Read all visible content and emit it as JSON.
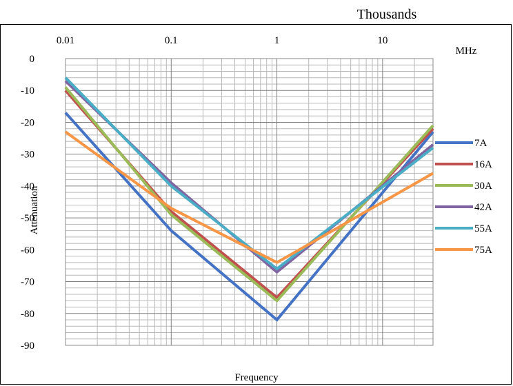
{
  "chart_data": {
    "type": "line",
    "x_scale": "log",
    "x_axis_position": "top",
    "x_units_label": "Thousands",
    "x_unit_suffix": "MHz",
    "xlabel": "Frequency",
    "ylabel": "Attenuation",
    "x": [
      0.01,
      0.1,
      1,
      30
    ],
    "xlim": [
      0.01,
      30
    ],
    "ylim": [
      -90,
      0
    ],
    "x_ticks": [
      {
        "value": 0.01,
        "label": "0.01"
      },
      {
        "value": 0.1,
        "label": "0.1"
      },
      {
        "value": 1,
        "label": "1"
      },
      {
        "value": 10,
        "label": "10"
      }
    ],
    "y_ticks": [
      0,
      -10,
      -20,
      -30,
      -40,
      -50,
      -60,
      -70,
      -80,
      -90
    ],
    "grid": true,
    "legend_position": "right",
    "series": [
      {
        "name": "7A",
        "color": "#4472C4",
        "values": [
          -17,
          -54,
          -82,
          -23
        ]
      },
      {
        "name": "16A",
        "color": "#C0504D",
        "values": [
          -10,
          -48,
          -75,
          -22
        ]
      },
      {
        "name": "30A",
        "color": "#9BBB59",
        "values": [
          -9,
          -49,
          -76,
          -21
        ]
      },
      {
        "name": "42A",
        "color": "#8064A2",
        "values": [
          -7,
          -39,
          -67,
          -27
        ]
      },
      {
        "name": "55A",
        "color": "#4BACC6",
        "values": [
          -6,
          -40,
          -66,
          -28
        ]
      },
      {
        "name": "75A",
        "color": "#F79646",
        "values": [
          -23,
          -47,
          -64,
          -36
        ]
      }
    ]
  }
}
